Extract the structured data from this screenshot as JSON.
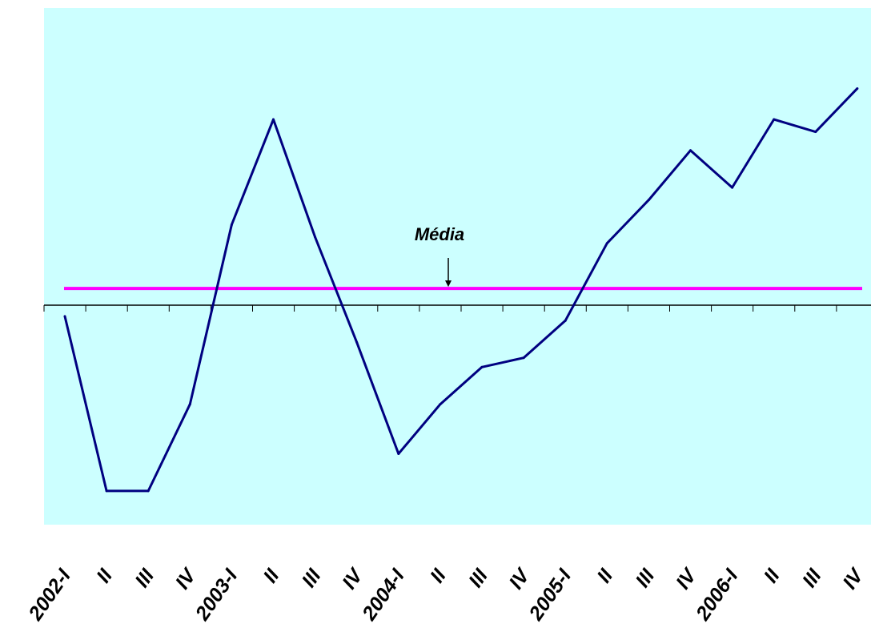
{
  "chart_data": {
    "type": "line",
    "title": "",
    "xlabel": "",
    "ylabel": "",
    "categories": [
      "2002-I",
      "II",
      "III",
      "IV",
      "2003-I",
      "II",
      "III",
      "IV",
      "2004-I",
      "II",
      "III",
      "IV",
      "2005-I",
      "II",
      "III",
      "IV",
      "2006-I",
      "II",
      "III",
      "IV"
    ],
    "series": [
      {
        "values": [
          -0.18,
          -3.0,
          -3.0,
          -1.6,
          1.3,
          3.0,
          1.1,
          -0.6,
          -2.4,
          -1.6,
          -1.0,
          -0.85,
          -0.25,
          1.0,
          1.7,
          2.5,
          1.9,
          3.0,
          2.8,
          3.5
        ]
      }
    ],
    "reference_line": {
      "label": "Média",
      "value": 0.27
    },
    "ylim": [
      -3.5,
      4.8
    ],
    "grid": false,
    "colors": {
      "plot_background": "#ccffff",
      "series_line": "#000080",
      "average_line": "#ff00ff",
      "axis": "#000000"
    }
  }
}
